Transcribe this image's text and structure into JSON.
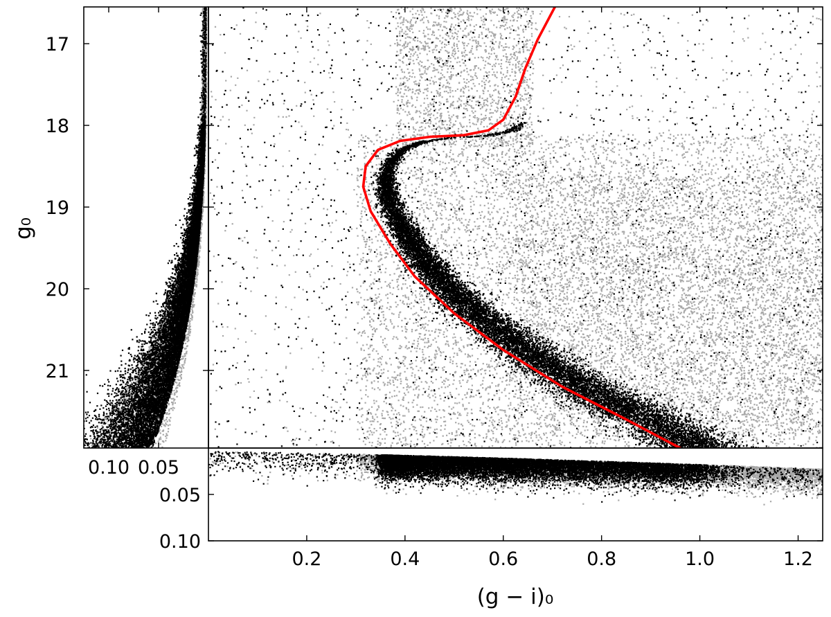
{
  "chart_data": {
    "type": "scatter",
    "title": "",
    "xlabel": "(g − i)₀",
    "ylabel": "g₀",
    "xlim": [
      0.0,
      1.25
    ],
    "ylim": [
      21.95,
      16.55
    ],
    "y_inverted": true,
    "grid": false,
    "legend": "none",
    "x_tick_labels": [
      "0.2",
      "0.4",
      "0.6",
      "0.8",
      "1.0",
      "1.2"
    ],
    "y_tick_labels": [
      "17",
      "18",
      "19",
      "20",
      "21"
    ],
    "bottom_panel": {
      "description": "color error",
      "ylim": [
        0.0,
        0.1
      ],
      "y_tick_labels": [
        "0.05",
        "0.10"
      ]
    },
    "left_panel": {
      "description": "magnitude error",
      "xlim": [
        0.125,
        0.0
      ],
      "x_tick_labels": [
        "0.10",
        "0.05"
      ]
    },
    "colors": {
      "field_stars": "#a8a8a8",
      "member_stars": "#000000",
      "isochrone": "#ff0000"
    },
    "series": [
      {
        "role": "isochrone",
        "points": [
          {
            "x": 0.96,
            "y": 21.95
          },
          {
            "x": 0.85,
            "y": 21.6
          },
          {
            "x": 0.72,
            "y": 21.2
          },
          {
            "x": 0.6,
            "y": 20.75
          },
          {
            "x": 0.5,
            "y": 20.3
          },
          {
            "x": 0.42,
            "y": 19.85
          },
          {
            "x": 0.37,
            "y": 19.45
          },
          {
            "x": 0.33,
            "y": 19.05
          },
          {
            "x": 0.315,
            "y": 18.75
          },
          {
            "x": 0.32,
            "y": 18.5
          },
          {
            "x": 0.345,
            "y": 18.3
          },
          {
            "x": 0.39,
            "y": 18.19
          },
          {
            "x": 0.45,
            "y": 18.14
          },
          {
            "x": 0.52,
            "y": 18.12
          },
          {
            "x": 0.57,
            "y": 18.06
          },
          {
            "x": 0.6,
            "y": 17.93
          },
          {
            "x": 0.625,
            "y": 17.65
          },
          {
            "x": 0.645,
            "y": 17.3
          },
          {
            "x": 0.67,
            "y": 16.95
          },
          {
            "x": 0.705,
            "y": 16.55
          }
        ]
      }
    ]
  }
}
